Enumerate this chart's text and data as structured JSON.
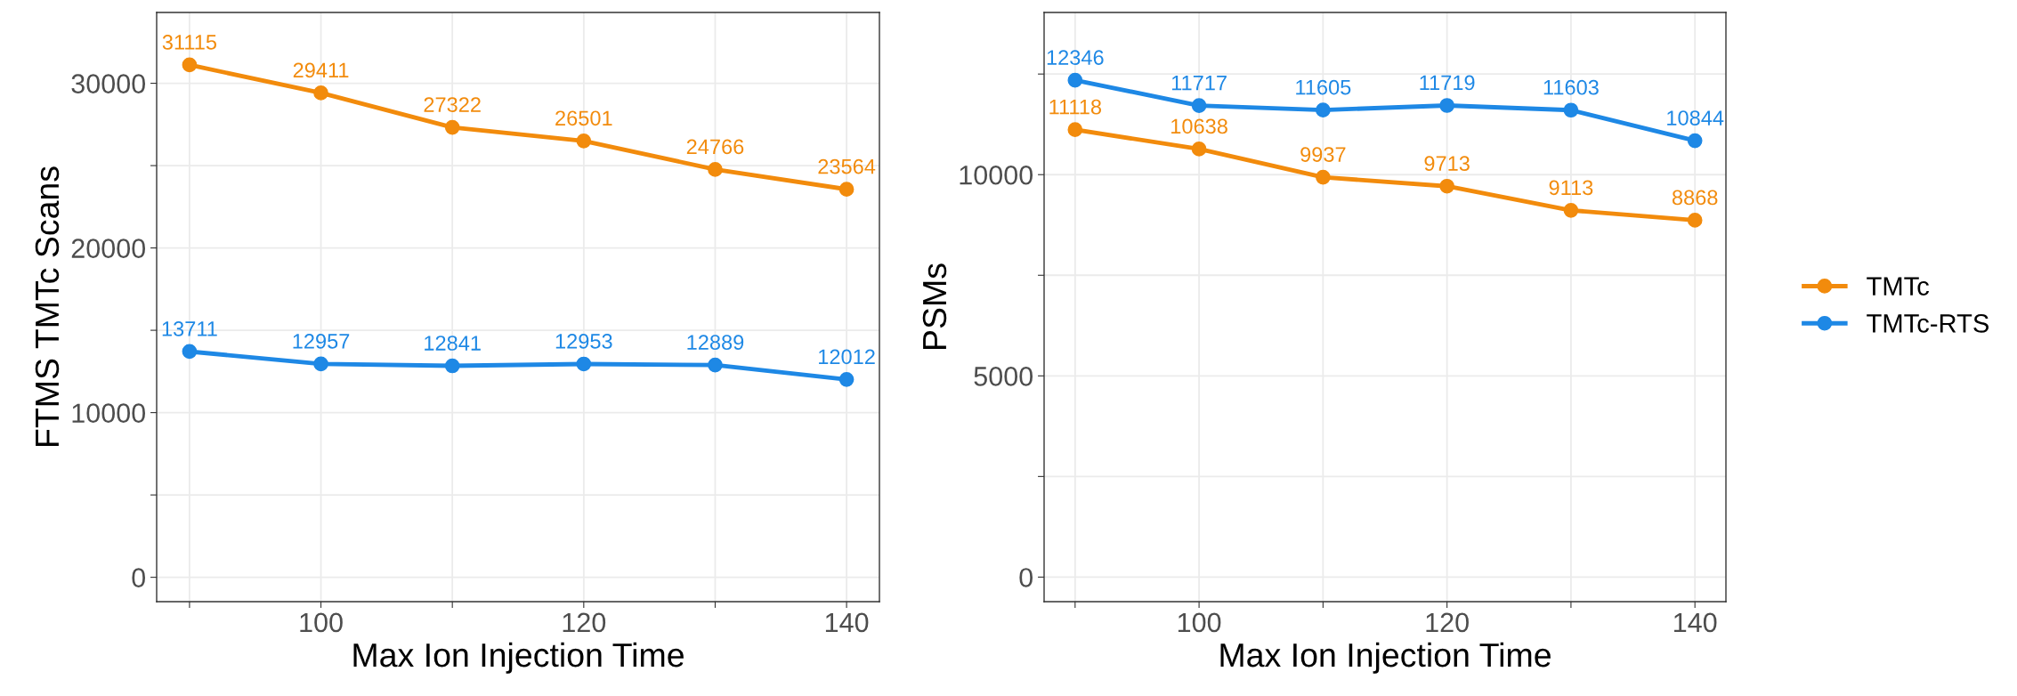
{
  "chart_data": [
    {
      "type": "line",
      "xlabel": "Max Ion Injection Time",
      "ylabel": "FTMS TMTc Scans",
      "x": [
        90,
        100,
        110,
        120,
        130,
        140
      ],
      "series": [
        {
          "color": "#f28b0c",
          "values": [
            31115,
            29411,
            27322,
            26501,
            24766,
            23564
          ]
        },
        {
          "color": "#1e88e5",
          "values": [
            13711,
            12957,
            12841,
            12953,
            12889,
            12012
          ]
        }
      ],
      "xlim": [
        87.5,
        142.5
      ],
      "xticks": [
        {
          "value": 90,
          "label": null
        },
        100,
        {
          "value": 110,
          "label": null
        },
        120,
        {
          "value": 130,
          "label": null
        },
        140
      ],
      "ylim": [
        -1480,
        34300
      ],
      "yticks": [
        0,
        {
          "value": 5000,
          "label": null
        },
        10000,
        {
          "value": 15000,
          "label": null
        },
        20000,
        {
          "value": 25000,
          "label": null
        },
        30000
      ],
      "grid": true,
      "marker": "circle",
      "line_style": "solid",
      "data_labels": true,
      "legend": false
    },
    {
      "type": "line",
      "xlabel": "Max Ion Injection Time",
      "ylabel": "PSMs",
      "x": [
        90,
        100,
        110,
        120,
        130,
        140
      ],
      "series": [
        {
          "name": "TMTc",
          "color": "#f28b0c",
          "values": [
            11118,
            10638,
            9937,
            9713,
            9113,
            8868
          ]
        },
        {
          "name": "TMTc-RTS",
          "color": "#1e88e5",
          "values": [
            12346,
            11717,
            11605,
            11719,
            11603,
            10844
          ]
        }
      ],
      "xlim": [
        87.5,
        142.5
      ],
      "xticks": [
        {
          "value": 90,
          "label": null
        },
        100,
        {
          "value": 110,
          "label": null
        },
        120,
        {
          "value": 130,
          "label": null
        },
        140
      ],
      "ylim": [
        -610,
        14030
      ],
      "yticks": [
        0,
        {
          "value": 2500,
          "label": null
        },
        5000,
        {
          "value": 7500,
          "label": null
        },
        10000,
        {
          "value": 12500,
          "label": null
        }
      ],
      "grid": true,
      "marker": "circle",
      "line_style": "solid",
      "data_labels": true,
      "legend": "right"
    }
  ]
}
